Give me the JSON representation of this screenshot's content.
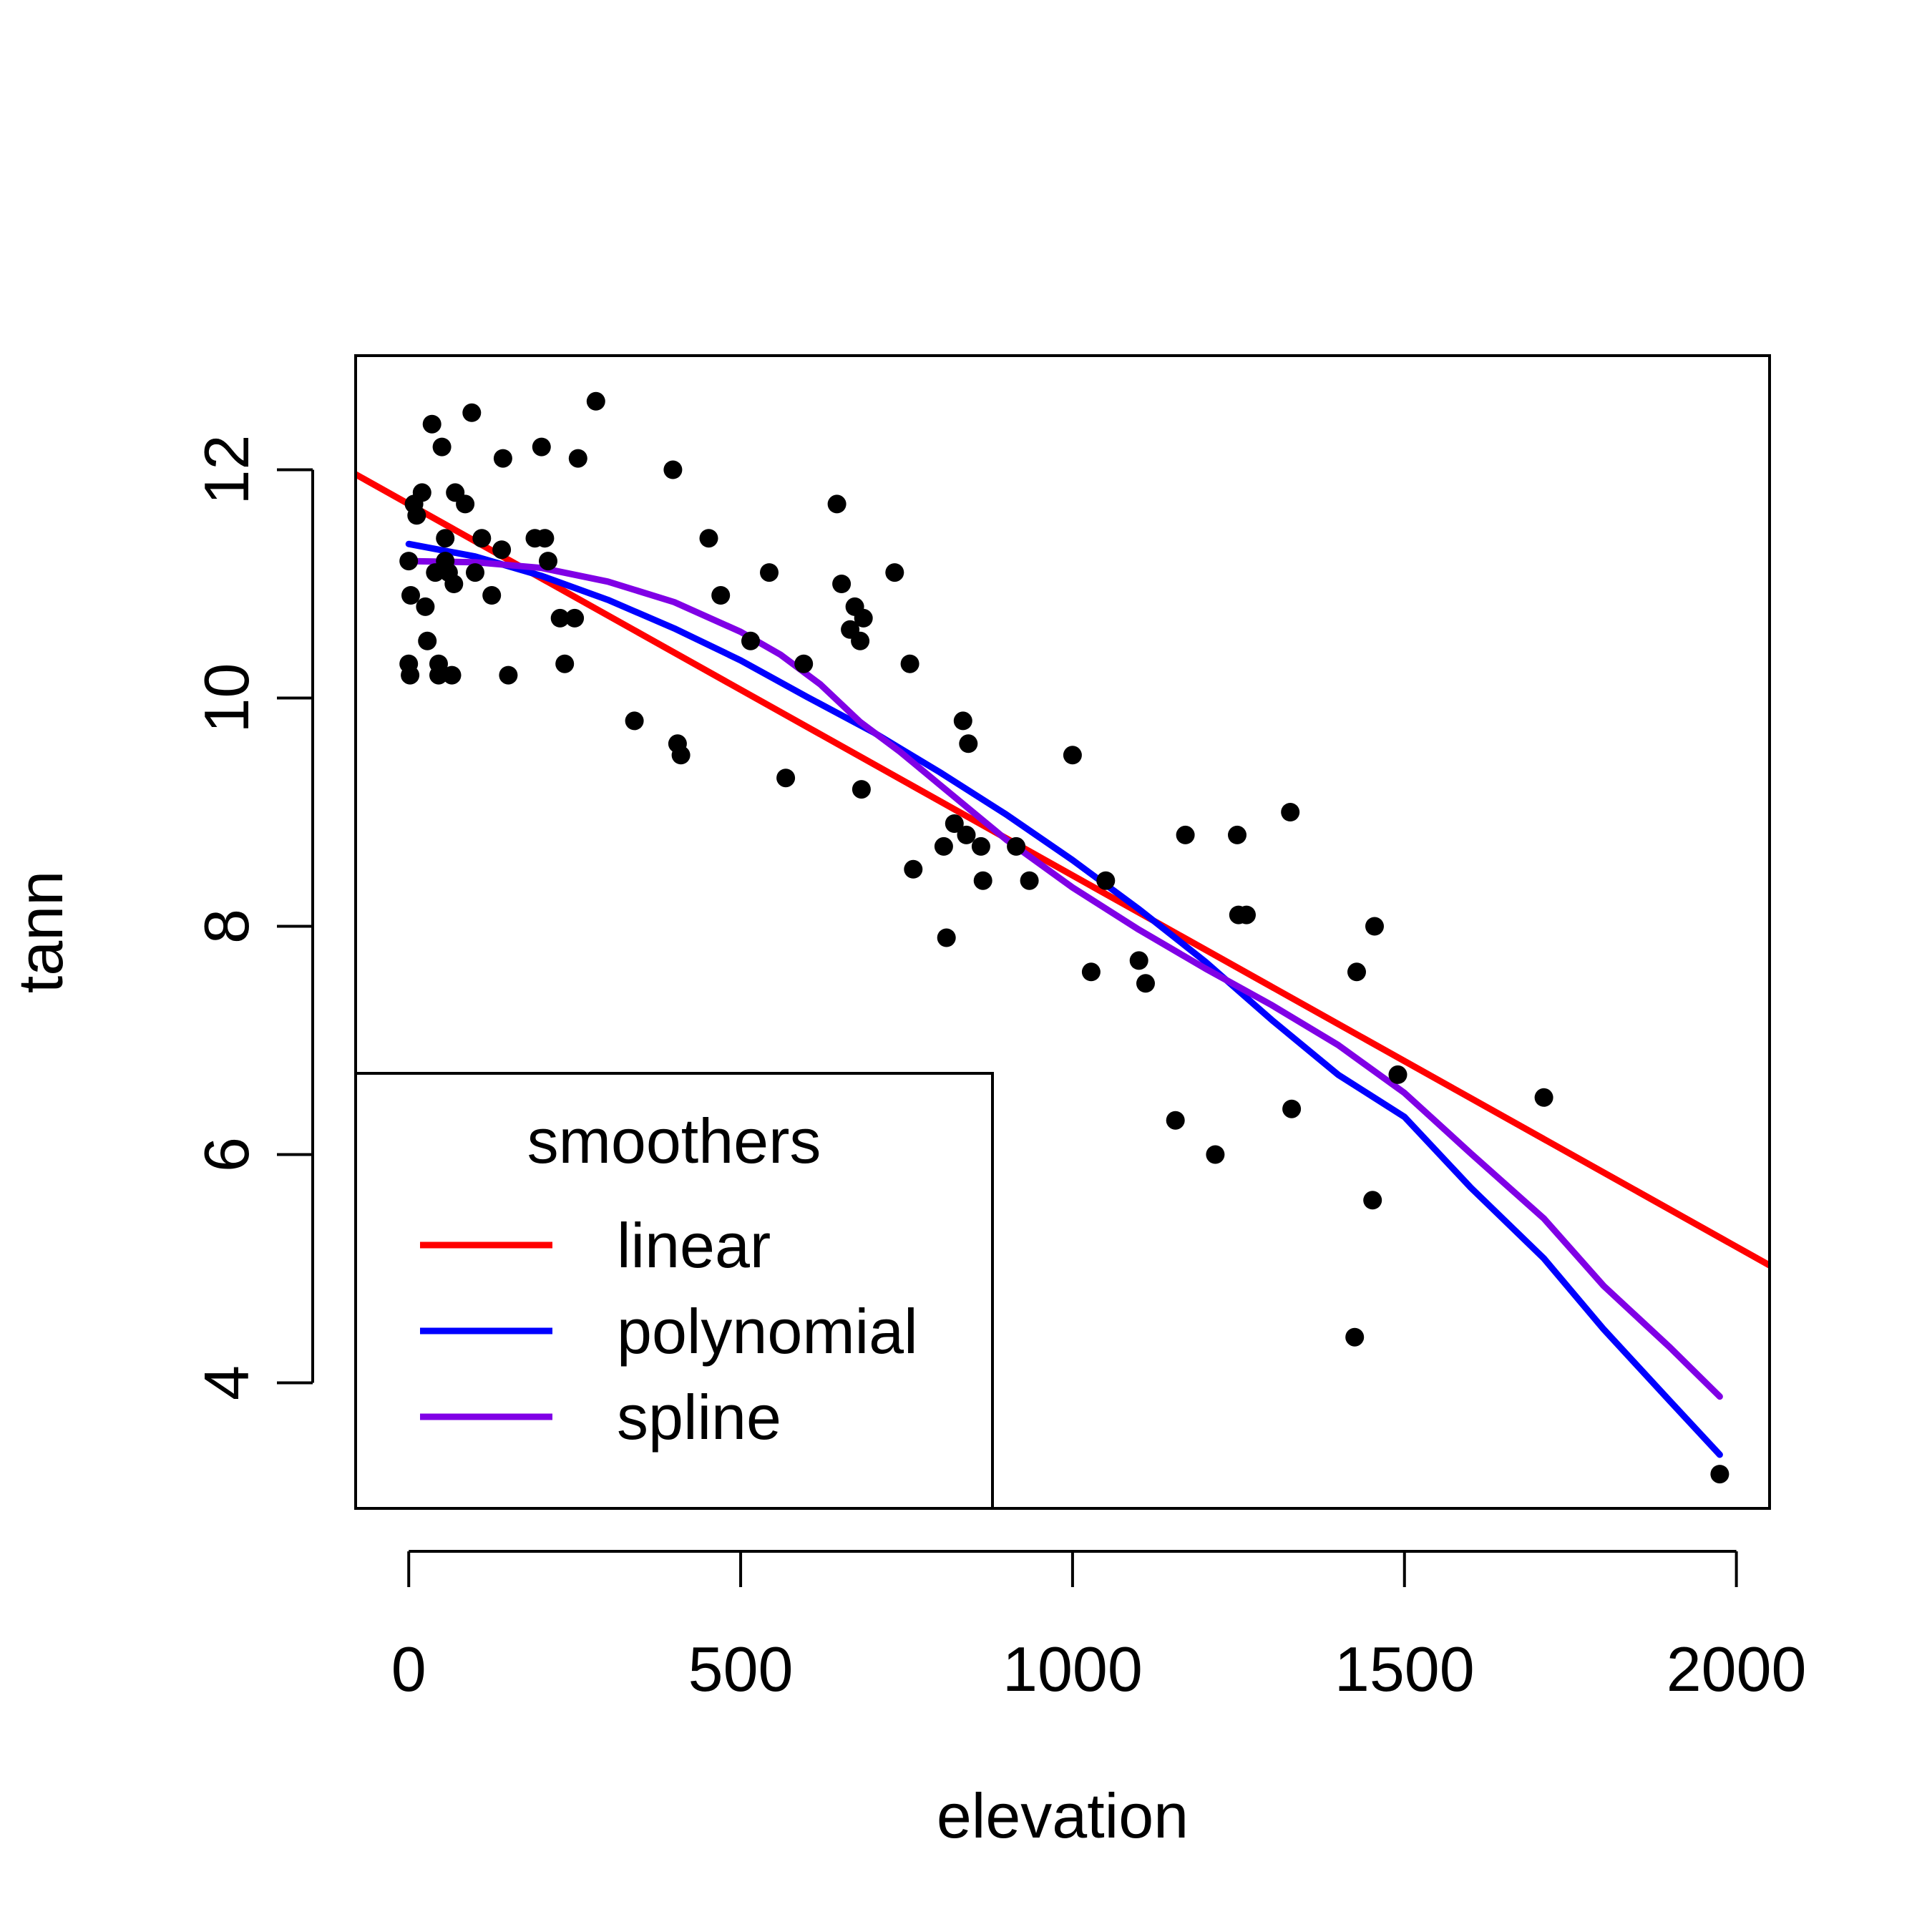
{
  "chart_data": {
    "type": "scatter",
    "title": "",
    "xlabel": "elevation",
    "ylabel": "tann",
    "xlim": [
      -80,
      2050
    ],
    "ylim": [
      2.9,
      13.0
    ],
    "xticks": [
      0,
      500,
      1000,
      1500,
      2000
    ],
    "xtick_labels": [
      "0",
      "500",
      "1000",
      "1500",
      "2000"
    ],
    "yticks": [
      4,
      6,
      8,
      10,
      12
    ],
    "ytick_labels": [
      "4",
      "6",
      "8",
      "10",
      "12"
    ],
    "grid": false,
    "points": [
      [
        0,
        11.2
      ],
      [
        3,
        10.9
      ],
      [
        0,
        10.3
      ],
      [
        2,
        10.2
      ],
      [
        8,
        11.7
      ],
      [
        12,
        11.6
      ],
      [
        20,
        11.8
      ],
      [
        25,
        10.8
      ],
      [
        28,
        10.5
      ],
      [
        35,
        12.4
      ],
      [
        40,
        11.1
      ],
      [
        45,
        10.3
      ],
      [
        45,
        10.2
      ],
      [
        50,
        12.2
      ],
      [
        55,
        11.4
      ],
      [
        55,
        11.2
      ],
      [
        60,
        11.1
      ],
      [
        65,
        10.2
      ],
      [
        68,
        11.0
      ],
      [
        70,
        11.8
      ],
      [
        85,
        11.7
      ],
      [
        95,
        12.5
      ],
      [
        100,
        11.1
      ],
      [
        110,
        11.4
      ],
      [
        125,
        10.9
      ],
      [
        140,
        11.3
      ],
      [
        142,
        12.1
      ],
      [
        150,
        10.2
      ],
      [
        190,
        11.4
      ],
      [
        200,
        12.2
      ],
      [
        205,
        11.4
      ],
      [
        210,
        11.2
      ],
      [
        228,
        10.7
      ],
      [
        235,
        10.3
      ],
      [
        250,
        10.7
      ],
      [
        255,
        12.1
      ],
      [
        282,
        12.6
      ],
      [
        340,
        9.8
      ],
      [
        398,
        12.0
      ],
      [
        405,
        9.6
      ],
      [
        410,
        9.5
      ],
      [
        452,
        11.4
      ],
      [
        470,
        10.9
      ],
      [
        515,
        10.5
      ],
      [
        543,
        11.1
      ],
      [
        568,
        9.3
      ],
      [
        595,
        10.3
      ],
      [
        645,
        11.7
      ],
      [
        652,
        11.0
      ],
      [
        665,
        10.6
      ],
      [
        672,
        10.8
      ],
      [
        680,
        10.5
      ],
      [
        682,
        9.2
      ],
      [
        685,
        10.7
      ],
      [
        732,
        11.1
      ],
      [
        755,
        10.3
      ],
      [
        760,
        8.5
      ],
      [
        806,
        8.7
      ],
      [
        810,
        7.9
      ],
      [
        822,
        8.9
      ],
      [
        835,
        9.8
      ],
      [
        840,
        8.8
      ],
      [
        843,
        9.6
      ],
      [
        862,
        8.7
      ],
      [
        865,
        8.4
      ],
      [
        915,
        8.7
      ],
      [
        935,
        8.4
      ],
      [
        1000,
        9.5
      ],
      [
        1028,
        7.6
      ],
      [
        1050,
        8.4
      ],
      [
        1100,
        7.7
      ],
      [
        1110,
        7.5
      ],
      [
        1155,
        6.3
      ],
      [
        1170,
        8.8
      ],
      [
        1215,
        6.0
      ],
      [
        1248,
        8.8
      ],
      [
        1250,
        8.1
      ],
      [
        1262,
        8.1
      ],
      [
        1328,
        9.0
      ],
      [
        1330,
        6.4
      ],
      [
        1425,
        4.4
      ],
      [
        1428,
        7.6
      ],
      [
        1452,
        5.6
      ],
      [
        1455,
        8.0
      ],
      [
        1490,
        6.7
      ],
      [
        1710,
        6.5
      ],
      [
        1975,
        3.2
      ]
    ],
    "series": [
      {
        "name": "linear",
        "color": "#ff0000",
        "x": [
          -80,
          2050
        ],
        "y": [
          11.96,
          5.03
        ]
      },
      {
        "name": "polynomial",
        "color": "#0000ff",
        "x": [
          0,
          100,
          200,
          300,
          400,
          500,
          600,
          700,
          800,
          900,
          1000,
          1100,
          1200,
          1300,
          1400,
          1500,
          1600,
          1710,
          1800,
          1900,
          1975
        ],
        "y": [
          11.35,
          11.24,
          11.07,
          10.86,
          10.61,
          10.33,
          10.01,
          9.7,
          9.35,
          8.98,
          8.58,
          8.15,
          7.69,
          7.18,
          6.7,
          6.33,
          5.71,
          5.09,
          4.47,
          3.84,
          3.37
        ]
      },
      {
        "name": "spline",
        "color": "#8000e6",
        "x": [
          0,
          100,
          200,
          300,
          400,
          500,
          560,
          620,
          680,
          740,
          800,
          900,
          1000,
          1100,
          1200,
          1300,
          1400,
          1500,
          1600,
          1710,
          1800,
          1900,
          1975
        ],
        "y": [
          11.2,
          11.19,
          11.14,
          11.02,
          10.84,
          10.58,
          10.38,
          10.12,
          9.79,
          9.53,
          9.24,
          8.76,
          8.34,
          7.97,
          7.63,
          7.31,
          6.96,
          6.54,
          6.01,
          5.44,
          4.85,
          4.31,
          3.88
        ]
      }
    ],
    "legend": {
      "title": "smoothers",
      "position": "bottom-left",
      "entries": [
        "linear",
        "polynomial",
        "spline"
      ]
    }
  }
}
